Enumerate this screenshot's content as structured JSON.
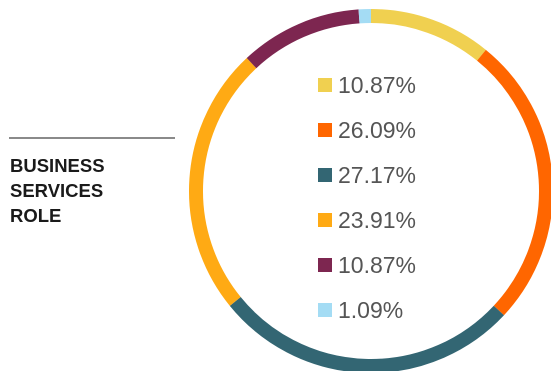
{
  "side_label": {
    "lines": [
      "BUSINESS",
      "SERVICES",
      "ROLE"
    ]
  },
  "chart_data": {
    "type": "pie",
    "donut": true,
    "start_angle_deg": 0,
    "direction": "clockwise",
    "slices": [
      {
        "value": 10.87,
        "label": "10.87%",
        "color": "#F0D050"
      },
      {
        "value": 26.09,
        "label": "26.09%",
        "color": "#FF6600"
      },
      {
        "value": 27.17,
        "label": "27.17%",
        "color": "#336673"
      },
      {
        "value": 23.91,
        "label": "23.91%",
        "color": "#FFAA14"
      },
      {
        "value": 10.87,
        "label": "10.87%",
        "color": "#7D2650"
      },
      {
        "value": 1.09,
        "label": "1.09%",
        "color": "#A4DCF4"
      }
    ],
    "legend_position": "inside"
  }
}
